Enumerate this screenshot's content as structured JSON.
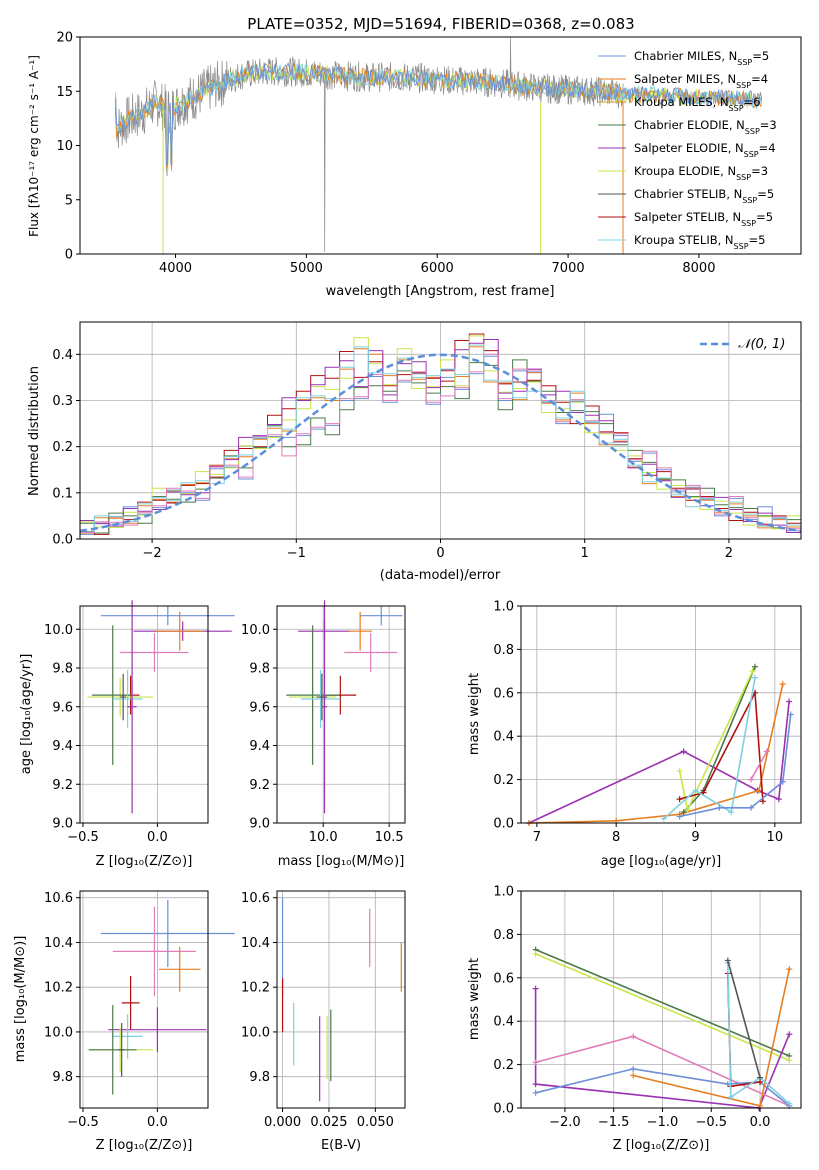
{
  "figure_title": "PLATE=0352, MJD=51694, FIBERID=0368, z=0.083",
  "palette": {
    "chabrier_miles": "#6a8fd8",
    "salpeter_miles": "#e67e22",
    "kroupa_miles": "#d4a017",
    "chabrier_elodie": "#4a7a4a",
    "salpeter_elodie": "#9b30b0",
    "kroupa_elodie": "#c8e64a",
    "chabrier_stelib": "#555555",
    "salpeter_stelib": "#b01010",
    "kroupa_stelib": "#7fd0e0",
    "pink": "#e07cb8",
    "gauss": "#5b8fd8"
  },
  "chart_data": [
    {
      "type": "line",
      "xlabel": "wavelength [Angstrom, rest frame]",
      "ylabel": "Flux [fλ10⁻¹⁷ erg cm⁻² s⁻¹ A⁻¹]",
      "xlim": [
        3270,
        8780
      ],
      "ylim": [
        0,
        20
      ],
      "xticks": [
        "4000",
        "5000",
        "6000",
        "7000",
        "8000"
      ],
      "yticks": [
        "0",
        "5",
        "10",
        "15",
        "20"
      ],
      "legend_position": "top-right",
      "legend": [
        "Chabrier MILES, N_SSP=5",
        "Salpeter MILES, N_SSP=4",
        "Kroupa MILES, N_SSP=6",
        "Chabrier ELODIE, N_SSP=3",
        "Salpeter ELODIE, N_SSP=4",
        "Kroupa ELODIE, N_SSP=3",
        "Chabrier STELIB, N_SSP=5",
        "Salpeter STELIB, N_SSP=5",
        "Kroupa STELIB, N_SSP=5"
      ],
      "spectrum": {
        "x": [
          3550,
          3650,
          3750,
          3850,
          3950,
          4050,
          4150,
          4300,
          4500,
          4700,
          4900,
          5100,
          5300,
          5500,
          5700,
          5900,
          6100,
          6300,
          6500,
          6700,
          6900,
          7100,
          7300,
          7500,
          7700,
          7900,
          8100,
          8300,
          8500
        ],
        "y": [
          11.5,
          12.5,
          13.0,
          14.0,
          13.2,
          14.0,
          14.5,
          15.5,
          16.5,
          16.8,
          16.8,
          16.6,
          16.4,
          16.3,
          16.3,
          16.2,
          16.0,
          15.9,
          15.7,
          15.4,
          15.2,
          15.1,
          14.9,
          14.7,
          14.6,
          14.5,
          14.4,
          14.3,
          14.2
        ]
      }
    },
    {
      "type": "bar",
      "xlabel": "(data-model)/error",
      "ylabel": "Normed distribution",
      "xlim": [
        -2.5,
        2.5
      ],
      "ylim": [
        0,
        0.47
      ],
      "xticks": [
        "−2",
        "−1",
        "0",
        "1",
        "2"
      ],
      "yticks": [
        "0.0",
        "0.1",
        "0.2",
        "0.3",
        "0.4"
      ],
      "legend_position": "top-right",
      "legend": [
        "𝒩(0, 1)"
      ],
      "bin_width": 0.1,
      "bin_start": -2.5,
      "series": [
        {
          "values": [
            0.03,
            0.025,
            0.04,
            0.05,
            0.05,
            0.08,
            0.09,
            0.1,
            0.1,
            0.14,
            0.16,
            0.15,
            0.21,
            0.23,
            0.2,
            0.22,
            0.25,
            0.23,
            0.3,
            0.32,
            0.34,
            0.3,
            0.36,
            0.35,
            0.3,
            0.33,
            0.32,
            0.37,
            0.38,
            0.3,
            0.38,
            0.35,
            0.3,
            0.27,
            0.29,
            0.26,
            0.25,
            0.22,
            0.18,
            0.17,
            0.15,
            0.12,
            0.1,
            0.09,
            0.07,
            0.08,
            0.05,
            0.05,
            0.04,
            0.03
          ]
        },
        {
          "values": [
            0.025,
            0.03,
            0.045,
            0.05,
            0.06,
            0.09,
            0.1,
            0.11,
            0.13,
            0.14,
            0.17,
            0.19,
            0.2,
            0.24,
            0.25,
            0.29,
            0.31,
            0.32,
            0.36,
            0.42,
            0.38,
            0.35,
            0.4,
            0.33,
            0.35,
            0.38,
            0.34,
            0.42,
            0.36,
            0.33,
            0.31,
            0.34,
            0.29,
            0.27,
            0.3,
            0.25,
            0.22,
            0.2,
            0.16,
            0.14,
            0.12,
            0.1,
            0.09,
            0.08,
            0.07,
            0.06,
            0.05,
            0.04,
            0.03,
            0.03
          ]
        },
        {
          "values": [
            0.02,
            0.03,
            0.04,
            0.05,
            0.06,
            0.08,
            0.09,
            0.1,
            0.12,
            0.15,
            0.18,
            0.2,
            0.22,
            0.26,
            0.29,
            0.3,
            0.35,
            0.36,
            0.39,
            0.35,
            0.4,
            0.32,
            0.36,
            0.38,
            0.34,
            0.35,
            0.41,
            0.44,
            0.42,
            0.32,
            0.34,
            0.36,
            0.32,
            0.3,
            0.27,
            0.28,
            0.24,
            0.21,
            0.17,
            0.15,
            0.13,
            0.11,
            0.1,
            0.08,
            0.07,
            0.06,
            0.05,
            0.04,
            0.03,
            0.03
          ]
        }
      ]
    },
    {
      "type": "scatter",
      "xlabel": "Z [log₁₀(Z/Z⊙)]",
      "ylabel": "age  [log₁₀(age/yr)]",
      "xlim": [
        -0.52,
        0.34
      ],
      "ylim": [
        9.0,
        10.12
      ],
      "xticks": [
        "−0.5",
        "0.0"
      ],
      "yticks": [
        "9.0",
        "9.2",
        "9.4",
        "9.6",
        "9.8",
        "10.0"
      ]
    },
    {
      "type": "scatter",
      "xlabel": "mass [log₁₀(M/M⊙)]",
      "ylabel": "",
      "xlim": [
        9.65,
        10.62
      ],
      "ylim": [
        9.0,
        10.12
      ],
      "xticks": [
        "10.0",
        "10.5"
      ],
      "yticks": [
        "9.0",
        "9.2",
        "9.4",
        "9.6",
        "9.8",
        "10.0"
      ]
    },
    {
      "type": "line",
      "xlabel": "age  [log₁₀(age/yr)]",
      "ylabel": "mass weight",
      "xlim": [
        6.8,
        10.33
      ],
      "ylim": [
        0,
        1.0
      ],
      "xticks": [
        "7",
        "8",
        "9",
        "10"
      ],
      "yticks": [
        "0.0",
        "0.2",
        "0.4",
        "0.6",
        "0.8",
        "1.0"
      ]
    },
    {
      "type": "scatter",
      "xlabel": "Z [log₁₀(Z/Z⊙)]",
      "ylabel": "mass [log₁₀(M/M⊙)]",
      "xlim": [
        -0.52,
        0.34
      ],
      "ylim": [
        9.66,
        10.63
      ],
      "xticks": [
        "−0.5",
        "0.0"
      ],
      "yticks": [
        "9.8",
        "10.0",
        "10.2",
        "10.4",
        "10.6"
      ]
    },
    {
      "type": "scatter",
      "xlabel": "E(B-V)",
      "ylabel": "",
      "xlim": [
        -0.003,
        0.066
      ],
      "ylim": [
        9.66,
        10.63
      ],
      "xticks": [
        "0.000",
        "0.025",
        "0.050"
      ],
      "yticks": [
        "9.8",
        "10.0",
        "10.2",
        "10.4",
        "10.6"
      ]
    },
    {
      "type": "line",
      "xlabel": "Z [log₁₀(Z/Z⊙)]",
      "ylabel": "mass weight",
      "xlim": [
        -2.45,
        0.42
      ],
      "ylim": [
        0,
        1.0
      ],
      "xticks": [
        "−2.0",
        "−1.5",
        "−1.0",
        "−0.5",
        "0.0"
      ],
      "yticks": [
        "0.0",
        "0.2",
        "0.4",
        "0.6",
        "0.8",
        "1.0"
      ]
    }
  ]
}
